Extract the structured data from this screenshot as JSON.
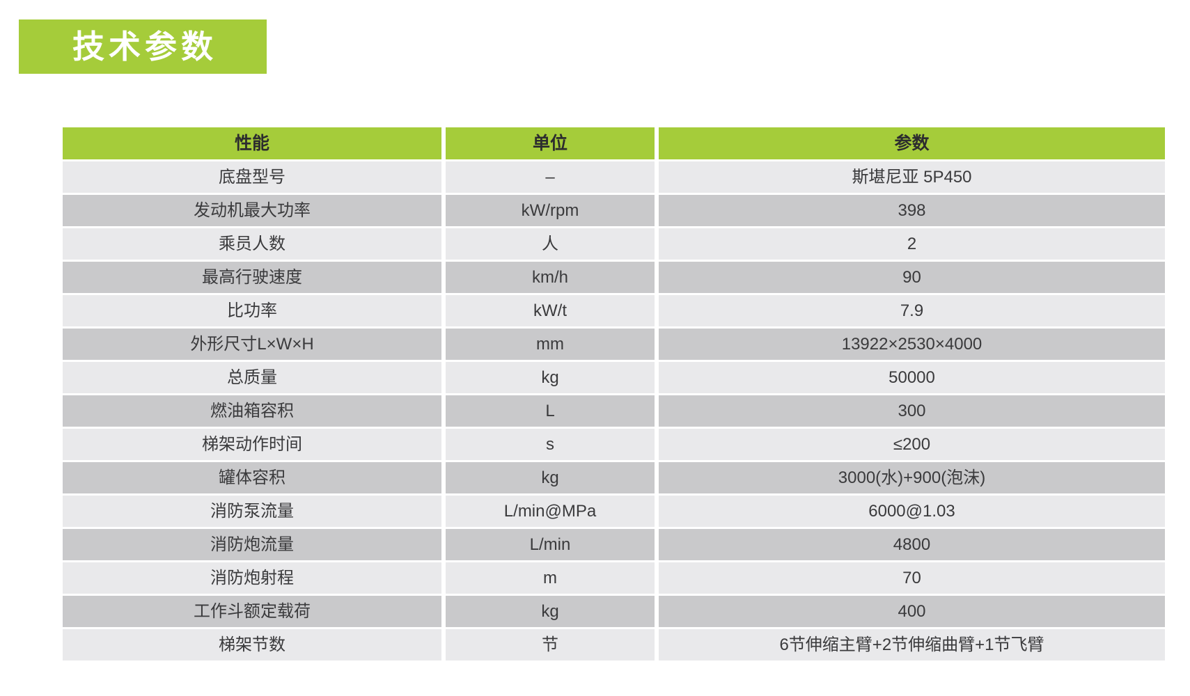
{
  "page": {
    "title": "技术参数",
    "accent_color": "#a5cc3a",
    "row_light_color": "#e9e9eb",
    "row_dark_color": "#c9c9cb"
  },
  "table": {
    "headers": [
      "性能",
      "单位",
      "参数"
    ],
    "rows": [
      {
        "name": "底盘型号",
        "unit": "–",
        "value": "斯堪尼亚 5P450"
      },
      {
        "name": "发动机最大功率",
        "unit": "kW/rpm",
        "value": "398"
      },
      {
        "name": "乘员人数",
        "unit": "人",
        "value": "2"
      },
      {
        "name": "最高行驶速度",
        "unit": "km/h",
        "value": "90"
      },
      {
        "name": "比功率",
        "unit": "kW/t",
        "value": "7.9"
      },
      {
        "name": "外形尺寸L×W×H",
        "unit": "mm",
        "value": "13922×2530×4000"
      },
      {
        "name": "总质量",
        "unit": "kg",
        "value": "50000"
      },
      {
        "name": "燃油箱容积",
        "unit": "L",
        "value": "300"
      },
      {
        "name": "梯架动作时间",
        "unit": "s",
        "value": "≤200"
      },
      {
        "name": "罐体容积",
        "unit": "kg",
        "value": "3000(水)+900(泡沫)"
      },
      {
        "name": "消防泵流量",
        "unit": "L/min@MPa",
        "value": "6000@1.03"
      },
      {
        "name": "消防炮流量",
        "unit": "L/min",
        "value": "4800"
      },
      {
        "name": "消防炮射程",
        "unit": "m",
        "value": "70"
      },
      {
        "name": "工作斗额定载荷",
        "unit": "kg",
        "value": "400"
      },
      {
        "name": "梯架节数",
        "unit": "节",
        "value": "6节伸缩主臂+2节伸缩曲臂+1节飞臂"
      }
    ]
  }
}
